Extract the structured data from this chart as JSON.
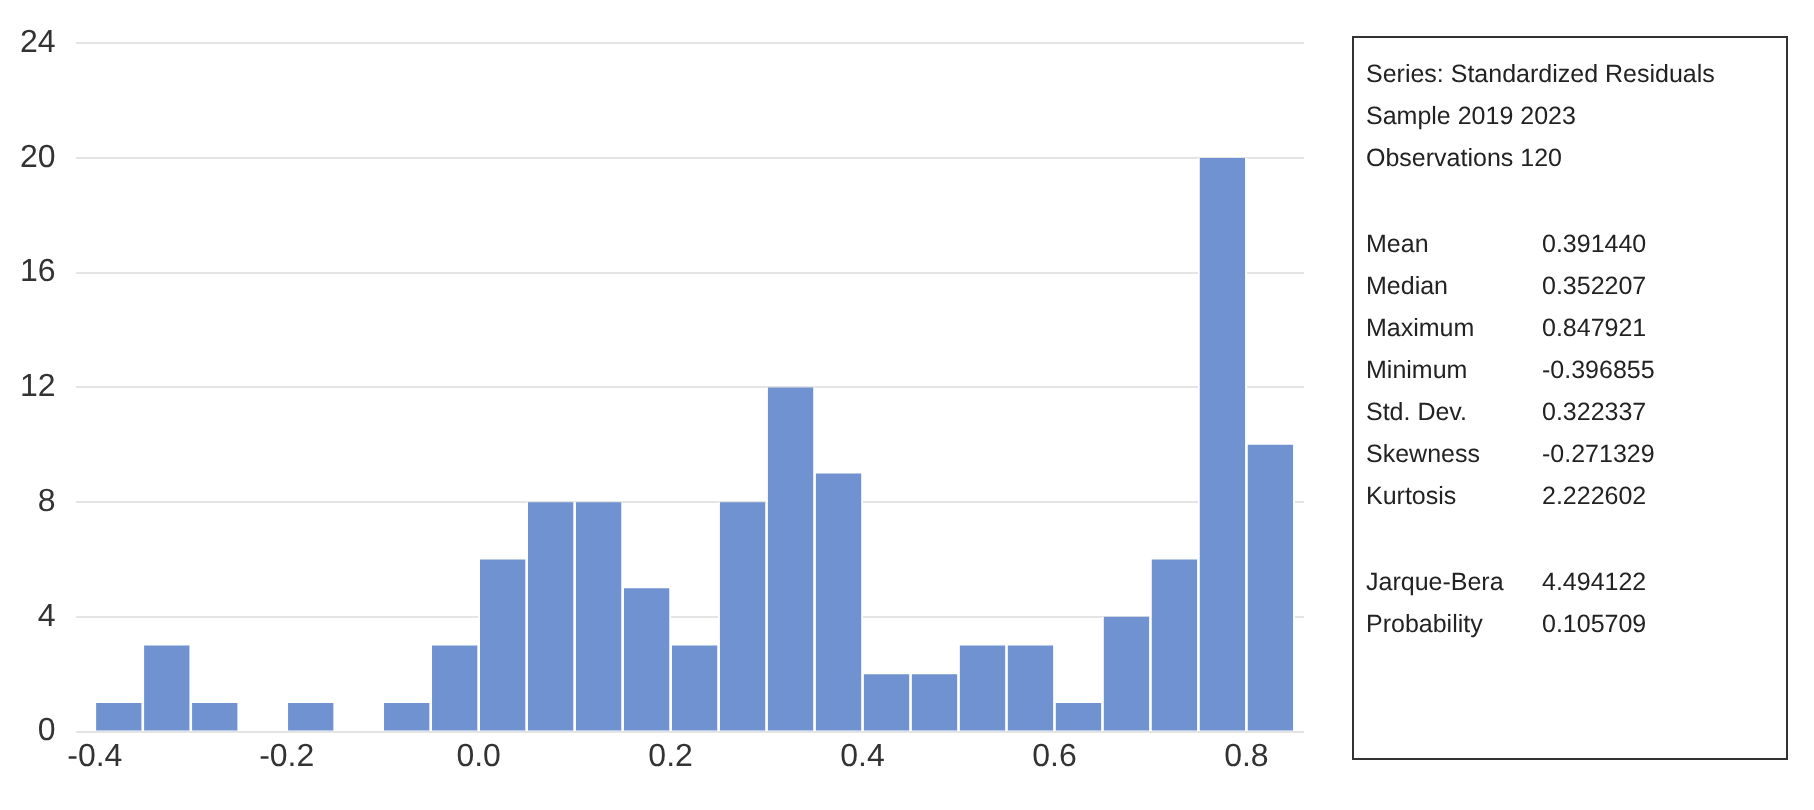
{
  "chart_data": {
    "type": "histogram",
    "bins": [
      -0.4,
      -0.35,
      -0.3,
      -0.25,
      -0.2,
      -0.15,
      -0.1,
      -0.05,
      0.0,
      0.05,
      0.1,
      0.15,
      0.2,
      0.25,
      0.3,
      0.35,
      0.4,
      0.45,
      0.5,
      0.55,
      0.6,
      0.65,
      0.7,
      0.75,
      0.8,
      0.85
    ],
    "values": [
      1,
      3,
      1,
      0,
      1,
      0,
      1,
      3,
      6,
      8,
      8,
      5,
      3,
      8,
      12,
      9,
      2,
      2,
      3,
      3,
      1,
      4,
      6,
      20,
      10
    ],
    "color": "#7092d0",
    "xlim": [
      -0.42,
      0.86
    ],
    "xticks": [
      {
        "value": -0.4,
        "label": "-0.4"
      },
      {
        "value": -0.2,
        "label": "-0.2"
      },
      {
        "value": 0,
        "label": "0.0"
      },
      {
        "value": 0.2,
        "label": "0.2"
      },
      {
        "value": 0.4,
        "label": "0.4"
      },
      {
        "value": 0.6,
        "label": "0.6"
      },
      {
        "value": 0.8,
        "label": "0.8"
      }
    ],
    "ylim": [
      0,
      24
    ],
    "yticks": [
      0,
      4,
      8,
      12,
      16,
      20,
      24
    ],
    "grid": "y",
    "annotations": [
      "Series: Standardized Residuals",
      "Sample 2019 2023",
      "Observations 120",
      "Mean 0.391440",
      "Median 0.352207",
      "Maximum 0.847921",
      "Minimum -0.396855",
      "Std. Dev. 0.322337",
      "Skewness -0.271329",
      "Kurtosis 2.222602",
      "Jarque-Bera 4.494122",
      "Probability 0.105709"
    ]
  }
}
